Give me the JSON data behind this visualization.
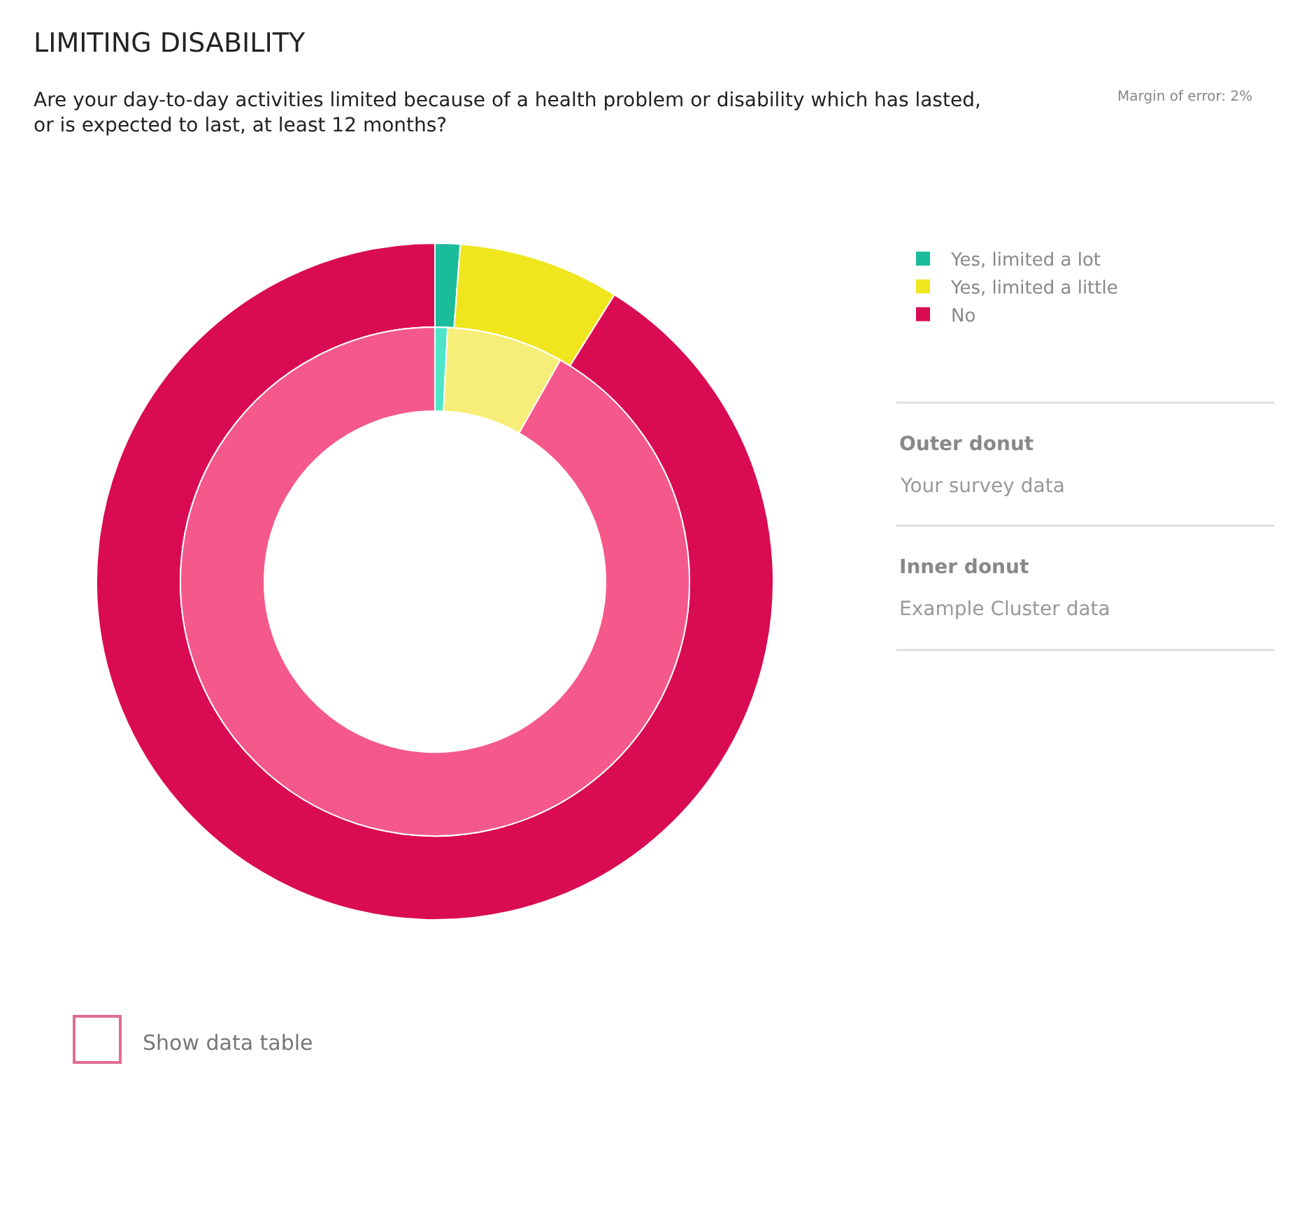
{
  "chart_data": [
    {
      "type": "donut",
      "title": "LIMITING DISABILITY",
      "subtitle": "Are your day-to-day activities limited because of a health problem or disability which has lasted, or is expected to last, at least 12 months?",
      "categories": [
        "Yes, limited a lot",
        "Yes, limited a little",
        "No"
      ],
      "values": [
        1.2,
        7.7,
        91.1
      ],
      "colors": [
        "#1abc9c",
        "#f0e61e",
        "#d90b52"
      ],
      "legend": "top right",
      "annotations": [
        "Margin of error: 2%",
        "Outer donut",
        "Your survey data",
        "Show data table"
      ]
    },
    {
      "type": "donut",
      "title": "Inner donut",
      "subtitle": "Example Cluster data",
      "categories": [
        null,
        null,
        null
      ],
      "values": [
        0.8,
        7.4,
        91.8
      ],
      "colors": [
        "#4ee6c9",
        "#f6ee78",
        "#f5588a"
      ]
    }
  ]
}
